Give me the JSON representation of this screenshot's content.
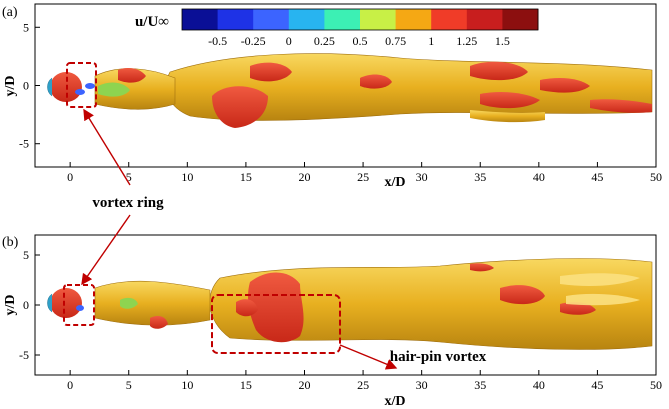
{
  "chart_data": [
    {
      "type": "contour-isosurface",
      "panel_label": "(a)",
      "xlabel": "x/D",
      "ylabel": "y/D",
      "xlim": [
        -3,
        50
      ],
      "ylim": [
        -7,
        7
      ],
      "xticks": [
        0,
        5,
        10,
        15,
        20,
        25,
        30,
        35,
        40,
        45,
        50
      ],
      "yticks": [
        -5,
        0,
        5
      ]
    },
    {
      "type": "contour-isosurface",
      "panel_label": "(b)",
      "xlabel": "x/D",
      "ylabel": "y/D",
      "xlim": [
        -3,
        50
      ],
      "ylim": [
        -7,
        7
      ],
      "xticks": [
        0,
        5,
        10,
        15,
        20,
        25,
        30,
        35,
        40,
        45,
        50
      ],
      "yticks": [
        -5,
        0,
        5
      ]
    }
  ],
  "colorbar": {
    "title": "u/U∞",
    "levels": [
      "-0.5",
      "-0.25",
      "0",
      "0.25",
      "0.5",
      "0.75",
      "1",
      "1.25",
      "1.5"
    ],
    "colors": [
      "#0a0f96",
      "#1e32e6",
      "#3c64ff",
      "#28b4f0",
      "#3cf0b4",
      "#c8f046",
      "#f5a814",
      "#f03c28",
      "#c81e1e",
      "#8c0f0f"
    ]
  },
  "annotations": {
    "vortex_ring": "vortex ring",
    "hair_pin": "hair-pin vortex"
  },
  "colors": {
    "ring_box": "#c00000",
    "arrow": "#c00000",
    "wake_gold": "#e8b020",
    "wake_red": "#e83020"
  }
}
